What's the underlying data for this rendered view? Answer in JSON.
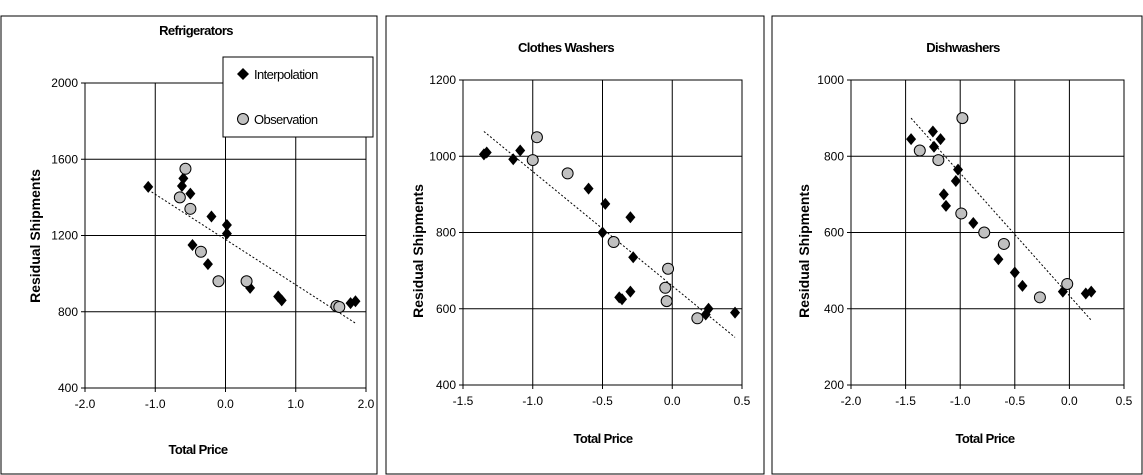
{
  "chart_data": [
    {
      "type": "scatter",
      "title": "Refrigerators",
      "xlabel": "Total Price",
      "ylabel": "Residual Shipments",
      "xlim": [
        -2.0,
        2.0
      ],
      "ylim": [
        400,
        2000
      ],
      "xticks": [
        "-2.0",
        "-1.0",
        "0.0",
        "1.0",
        "2.0"
      ],
      "xtick_values": [
        -2,
        -1,
        0,
        1,
        2
      ],
      "yticks": [
        "400",
        "800",
        "1200",
        "1600",
        "2000"
      ],
      "ytick_values": [
        400,
        800,
        1200,
        1600,
        2000
      ],
      "grid": true,
      "legend": "top-right",
      "series": [
        {
          "name": "Interpolation",
          "marker": "diamond",
          "color": "#000000",
          "points": [
            [
              -1.1,
              1455
            ],
            [
              -0.6,
              1500
            ],
            [
              -0.62,
              1460
            ],
            [
              -0.5,
              1420
            ],
            [
              -0.2,
              1300
            ],
            [
              0.02,
              1255
            ],
            [
              0.02,
              1210
            ],
            [
              -0.47,
              1150
            ],
            [
              -0.25,
              1050
            ],
            [
              0.35,
              925
            ],
            [
              0.75,
              880
            ],
            [
              0.8,
              860
            ],
            [
              1.78,
              845
            ],
            [
              1.85,
              855
            ]
          ]
        },
        {
          "name": "Observation",
          "marker": "circle",
          "color": "#c0c0c0",
          "points": [
            [
              -0.57,
              1550
            ],
            [
              -0.65,
              1400
            ],
            [
              -0.5,
              1340
            ],
            [
              -0.35,
              1115
            ],
            [
              -0.1,
              960
            ],
            [
              0.3,
              960
            ],
            [
              1.58,
              830
            ],
            [
              1.62,
              825
            ]
          ]
        }
      ],
      "trendline": [
        [
          -1.1,
          1440
        ],
        [
          1.85,
          740
        ]
      ]
    },
    {
      "type": "scatter",
      "title": "Clothes Washers",
      "xlabel": "Total Price",
      "ylabel": "Residual Shipments",
      "xlim": [
        -1.5,
        0.5
      ],
      "ylim": [
        400,
        1200
      ],
      "xticks": [
        "-1.5",
        "-1.0",
        "-0.5",
        "0.0",
        "0.5"
      ],
      "xtick_values": [
        -1.5,
        -1.0,
        -0.5,
        0.0,
        0.5
      ],
      "yticks": [
        "400",
        "600",
        "800",
        "1000",
        "1200"
      ],
      "ytick_values": [
        400,
        600,
        800,
        1000,
        1200
      ],
      "grid": true,
      "series": [
        {
          "name": "Interpolation",
          "marker": "diamond",
          "color": "#000000",
          "points": [
            [
              -1.35,
              1005
            ],
            [
              -1.33,
              1010
            ],
            [
              -1.14,
              992
            ],
            [
              -1.09,
              1015
            ],
            [
              -0.6,
              915
            ],
            [
              -0.48,
              875
            ],
            [
              -0.5,
              800
            ],
            [
              -0.3,
              840
            ],
            [
              -0.28,
              735
            ],
            [
              -0.38,
              630
            ],
            [
              -0.36,
              625
            ],
            [
              -0.3,
              645
            ],
            [
              0.24,
              585
            ],
            [
              0.26,
              600
            ],
            [
              0.45,
              590
            ]
          ]
        },
        {
          "name": "Observation",
          "marker": "circle",
          "color": "#c0c0c0",
          "points": [
            [
              -0.97,
              1050
            ],
            [
              -1.0,
              990
            ],
            [
              -0.75,
              955
            ],
            [
              -0.42,
              775
            ],
            [
              -0.03,
              705
            ],
            [
              -0.05,
              655
            ],
            [
              -0.04,
              620
            ],
            [
              0.18,
              575
            ]
          ]
        }
      ],
      "trendline": [
        [
          -1.35,
          1065
        ],
        [
          0.45,
          525
        ]
      ]
    },
    {
      "type": "scatter",
      "title": "Dishwashers",
      "xlabel": "Total Price",
      "ylabel": "Residual Shipments",
      "xlim": [
        -2.0,
        0.5
      ],
      "ylim": [
        200,
        1000
      ],
      "xticks": [
        "-2.0",
        "-1.5",
        "-1.0",
        "-0.5",
        "0.0",
        "0.5"
      ],
      "xtick_values": [
        -2.0,
        -1.5,
        -1.0,
        -0.5,
        0.0,
        0.5
      ],
      "yticks": [
        "200",
        "400",
        "600",
        "800",
        "1000"
      ],
      "ytick_values": [
        200,
        400,
        600,
        800,
        1000
      ],
      "grid": true,
      "series": [
        {
          "name": "Interpolation",
          "marker": "diamond",
          "color": "#000000",
          "points": [
            [
              -1.45,
              845
            ],
            [
              -1.25,
              865
            ],
            [
              -1.18,
              845
            ],
            [
              -1.24,
              825
            ],
            [
              -1.02,
              765
            ],
            [
              -1.04,
              735
            ],
            [
              -1.15,
              700
            ],
            [
              -1.13,
              670
            ],
            [
              -0.88,
              625
            ],
            [
              -0.65,
              530
            ],
            [
              -0.5,
              495
            ],
            [
              -0.43,
              460
            ],
            [
              -0.06,
              445
            ],
            [
              0.15,
              440
            ],
            [
              0.2,
              445
            ]
          ]
        },
        {
          "name": "Observation",
          "marker": "circle",
          "color": "#c0c0c0",
          "points": [
            [
              -1.37,
              815
            ],
            [
              -0.98,
              900
            ],
            [
              -1.2,
              790
            ],
            [
              -0.99,
              650
            ],
            [
              -0.78,
              600
            ],
            [
              -0.6,
              570
            ],
            [
              -0.27,
              430
            ],
            [
              -0.02,
              465
            ]
          ]
        }
      ],
      "trendline": [
        [
          -1.45,
          900
        ],
        [
          0.2,
          370
        ]
      ]
    }
  ]
}
